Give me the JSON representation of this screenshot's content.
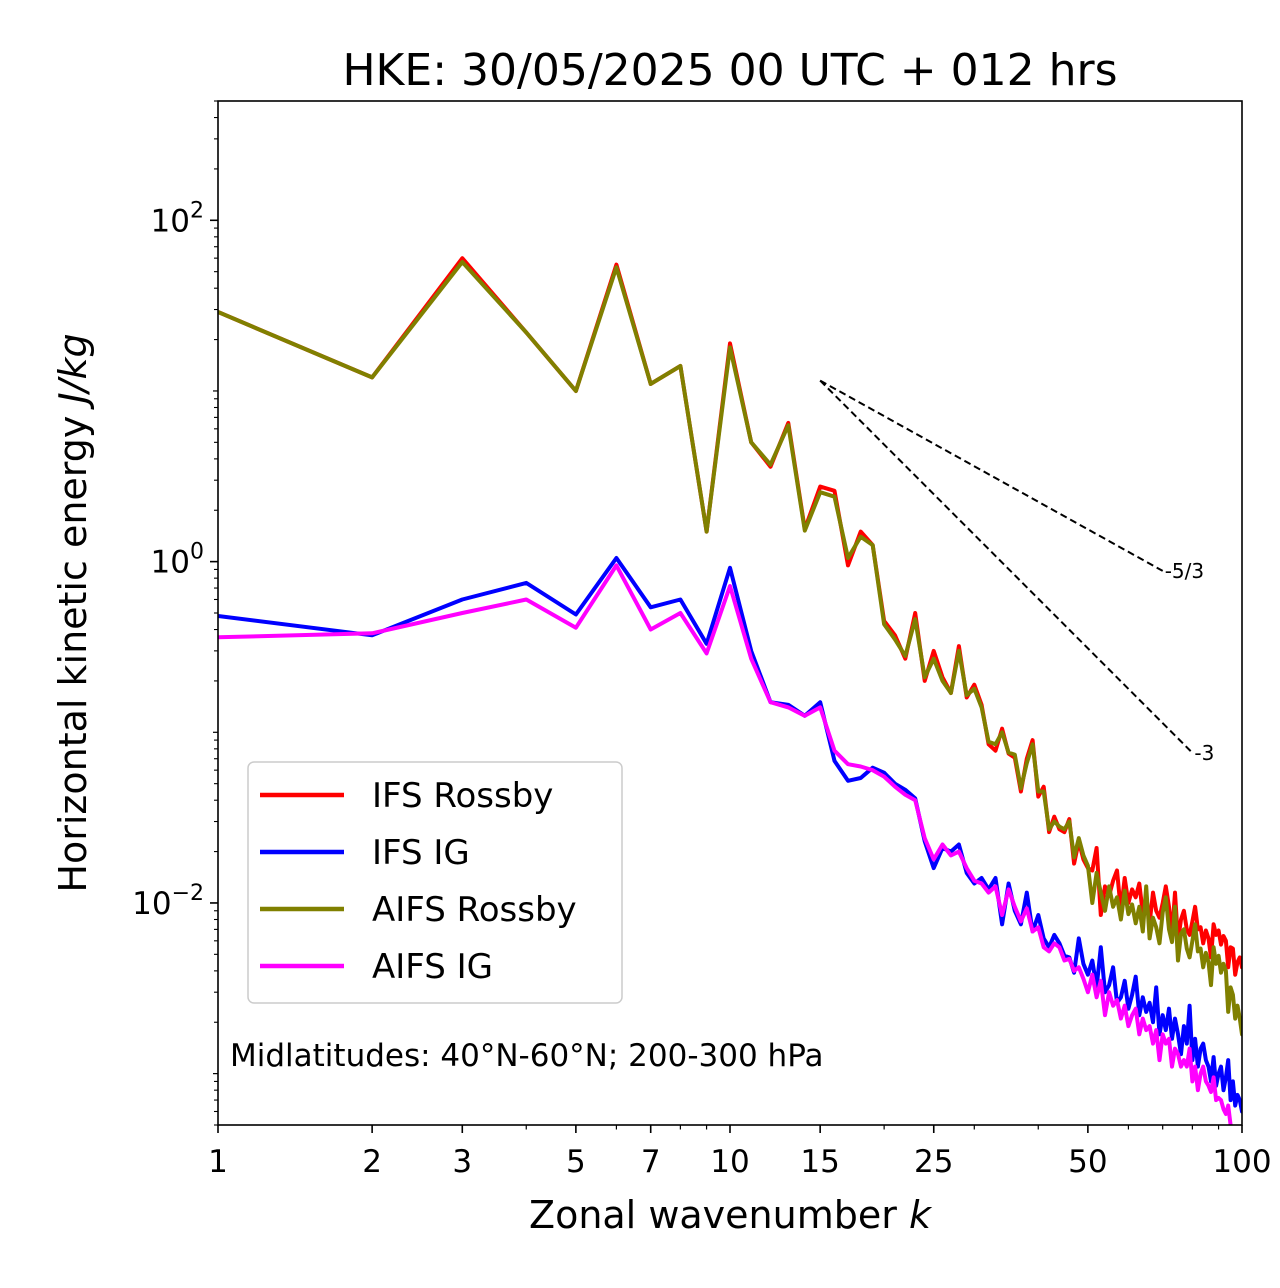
{
  "chart_data": {
    "type": "line",
    "title": "HKE: 30/05/2025 00 UTC + 012 hrs",
    "xlabel": "Zonal wavenumber",
    "xlabel_var": "k",
    "ylabel": "Horizontal kinetic energy",
    "ylabel_unit": "J/kg",
    "xscale": "log",
    "yscale": "log",
    "xlim": [
      1,
      100
    ],
    "ylim": [
      0.0005,
      500
    ],
    "xticks": [
      {
        "value": 1,
        "label": "1"
      },
      {
        "value": 2,
        "label": "2"
      },
      {
        "value": 3,
        "label": "3"
      },
      {
        "value": 5,
        "label": "5"
      },
      {
        "value": 7,
        "label": "7"
      },
      {
        "value": 10,
        "label": "10"
      },
      {
        "value": 15,
        "label": "15"
      },
      {
        "value": 25,
        "label": "25"
      },
      {
        "value": 50,
        "label": "50"
      },
      {
        "value": 100,
        "label": "100"
      }
    ],
    "yticks": [
      {
        "value": 0.01,
        "base": "10",
        "exp": "−2"
      },
      {
        "value": 1,
        "base": "10",
        "exp": "0"
      },
      {
        "value": 100,
        "base": "10",
        "exp": "2"
      }
    ],
    "annotation": "Midlatitudes: 40°N-60°N; 200-300 hPa",
    "legend": {
      "position": "lower-left"
    },
    "reference_slopes": [
      {
        "label": "-5/3",
        "slope": -1.6667,
        "x_start": 15,
        "y_start": 11.5,
        "x_end": 70
      },
      {
        "label": "-3",
        "slope": -3,
        "x_start": 15,
        "y_start": 11.5,
        "x_end": 80
      }
    ],
    "x": [
      1,
      2,
      3,
      4,
      5,
      6,
      7,
      8,
      9,
      10,
      11,
      12,
      13,
      14,
      15,
      16,
      17,
      18,
      19,
      20,
      21,
      22,
      23,
      24,
      25,
      26,
      27,
      28,
      29,
      30,
      31,
      32,
      33,
      34,
      35,
      36,
      37,
      38,
      39,
      40,
      41,
      42,
      43,
      44,
      45,
      46,
      47,
      48,
      49,
      50,
      51,
      52,
      53,
      54,
      55,
      56,
      57,
      58,
      59,
      60,
      61,
      62,
      63,
      64,
      65,
      66,
      67,
      68,
      69,
      70,
      71,
      72,
      73,
      74,
      75,
      76,
      77,
      78,
      79,
      80,
      81,
      82,
      83,
      84,
      85,
      86,
      87,
      88,
      89,
      90,
      91,
      92,
      93,
      94,
      95,
      96,
      97,
      98,
      99,
      100
    ],
    "series": [
      {
        "name": "IFS Rossby",
        "color": "#ff0000",
        "values": [
          29,
          12,
          60,
          22,
          10,
          55,
          11,
          14,
          1.5,
          19,
          5,
          3.6,
          6.5,
          1.55,
          2.75,
          2.6,
          0.95,
          1.5,
          1.25,
          0.45,
          0.37,
          0.27,
          0.5,
          0.2,
          0.3,
          0.21,
          0.17,
          0.32,
          0.16,
          0.19,
          0.145,
          0.085,
          0.078,
          0.105,
          0.075,
          0.071,
          0.045,
          0.07,
          0.09,
          0.042,
          0.048,
          0.026,
          0.032,
          0.027,
          0.026,
          0.031,
          0.017,
          0.023,
          0.018,
          0.016,
          0.0155,
          0.021,
          0.0085,
          0.0125,
          0.011,
          0.0135,
          0.0155,
          0.009,
          0.014,
          0.01,
          0.012,
          0.0108,
          0.013,
          0.0087,
          0.011,
          0.0076,
          0.0115,
          0.009,
          0.0082,
          0.01,
          0.0125,
          0.0095,
          0.0065,
          0.0115,
          0.006,
          0.008,
          0.009,
          0.007,
          0.0065,
          0.0078,
          0.0095,
          0.007,
          0.0072,
          0.0058,
          0.0069,
          0.0062,
          0.0048,
          0.0075,
          0.0065,
          0.0069,
          0.0057,
          0.0064,
          0.006,
          0.0042,
          0.0055,
          0.0054,
          0.0038,
          0.0045,
          0.0048,
          0.0042
        ]
      },
      {
        "name": "IFS IG",
        "color": "#0000ff",
        "values": [
          0.48,
          0.37,
          0.6,
          0.75,
          0.49,
          1.05,
          0.54,
          0.6,
          0.33,
          0.92,
          0.3,
          0.15,
          0.145,
          0.125,
          0.15,
          0.068,
          0.052,
          0.054,
          0.062,
          0.058,
          0.05,
          0.046,
          0.041,
          0.023,
          0.016,
          0.021,
          0.02,
          0.022,
          0.015,
          0.013,
          0.014,
          0.012,
          0.014,
          0.0075,
          0.013,
          0.009,
          0.0075,
          0.0115,
          0.0068,
          0.0085,
          0.0062,
          0.0055,
          0.0065,
          0.0058,
          0.0049,
          0.0048,
          0.0039,
          0.0062,
          0.0044,
          0.0038,
          0.0046,
          0.0032,
          0.0055,
          0.003,
          0.0033,
          0.0042,
          0.0026,
          0.0028,
          0.0035,
          0.0024,
          0.0029,
          0.0037,
          0.0022,
          0.0028,
          0.0023,
          0.0026,
          0.002,
          0.0032,
          0.0017,
          0.0022,
          0.0018,
          0.0024,
          0.0016,
          0.0021,
          0.0017,
          0.0013,
          0.0019,
          0.0015,
          0.0025,
          0.0012,
          0.0016,
          0.0011,
          0.0014,
          0.0015,
          0.0012,
          0.0011,
          0.0009,
          0.00125,
          0.00085,
          0.001,
          0.0011,
          0.0008,
          0.00095,
          0.0012,
          0.0007,
          0.0009,
          0.00065,
          0.00075,
          0.0007,
          0.0006
        ]
      },
      {
        "name": "AIFS Rossby",
        "color": "#808000",
        "values": [
          29,
          12,
          57,
          22,
          10,
          53,
          11,
          14,
          1.5,
          18,
          5,
          3.7,
          6.3,
          1.52,
          2.55,
          2.4,
          1.05,
          1.4,
          1.25,
          0.43,
          0.35,
          0.28,
          0.46,
          0.21,
          0.27,
          0.2,
          0.17,
          0.3,
          0.165,
          0.18,
          0.14,
          0.088,
          0.085,
          0.1,
          0.076,
          0.074,
          0.047,
          0.066,
          0.085,
          0.045,
          0.045,
          0.027,
          0.03,
          0.028,
          0.027,
          0.03,
          0.0185,
          0.024,
          0.019,
          0.0165,
          0.01,
          0.015,
          0.0115,
          0.009,
          0.0125,
          0.0095,
          0.0108,
          0.008,
          0.0118,
          0.0086,
          0.0098,
          0.0076,
          0.0095,
          0.0068,
          0.0125,
          0.0062,
          0.0082,
          0.0072,
          0.0058,
          0.0088,
          0.0108,
          0.007,
          0.0059,
          0.0095,
          0.0046,
          0.0066,
          0.007,
          0.0054,
          0.0048,
          0.006,
          0.0075,
          0.0052,
          0.0054,
          0.0042,
          0.0051,
          0.0045,
          0.0033,
          0.0055,
          0.0044,
          0.0049,
          0.0039,
          0.0044,
          0.004,
          0.0023,
          0.0032,
          0.0029,
          0.0021,
          0.0025,
          0.0021,
          0.0017
        ]
      },
      {
        "name": "AIFS IG",
        "color": "#ff00ff",
        "values": [
          0.36,
          0.38,
          0.5,
          0.6,
          0.41,
          0.95,
          0.4,
          0.5,
          0.29,
          0.72,
          0.27,
          0.15,
          0.14,
          0.125,
          0.14,
          0.078,
          0.065,
          0.063,
          0.06,
          0.055,
          0.048,
          0.043,
          0.04,
          0.024,
          0.018,
          0.022,
          0.019,
          0.02,
          0.016,
          0.0135,
          0.013,
          0.0115,
          0.0125,
          0.0085,
          0.012,
          0.0095,
          0.0078,
          0.0093,
          0.0068,
          0.0072,
          0.0055,
          0.0052,
          0.0058,
          0.0055,
          0.0046,
          0.0047,
          0.004,
          0.0042,
          0.0036,
          0.003,
          0.0038,
          0.0028,
          0.0035,
          0.0022,
          0.003,
          0.0025,
          0.0027,
          0.0021,
          0.0025,
          0.0019,
          0.0022,
          0.0024,
          0.0017,
          0.0021,
          0.0018,
          0.0019,
          0.0015,
          0.0018,
          0.0012,
          0.0017,
          0.0015,
          0.0016,
          0.0011,
          0.0014,
          0.0013,
          0.0011,
          0.0012,
          0.0011,
          0.0014,
          0.0009,
          0.0011,
          0.0008,
          0.001,
          0.0011,
          0.0009,
          0.00085,
          0.00078,
          0.00095,
          0.0007,
          0.00072,
          0.0007,
          0.00062,
          0.00058,
          0.00065,
          0.0005,
          0.00048,
          0.00042,
          0.0004,
          0.00038,
          0.00036
        ]
      }
    ]
  }
}
